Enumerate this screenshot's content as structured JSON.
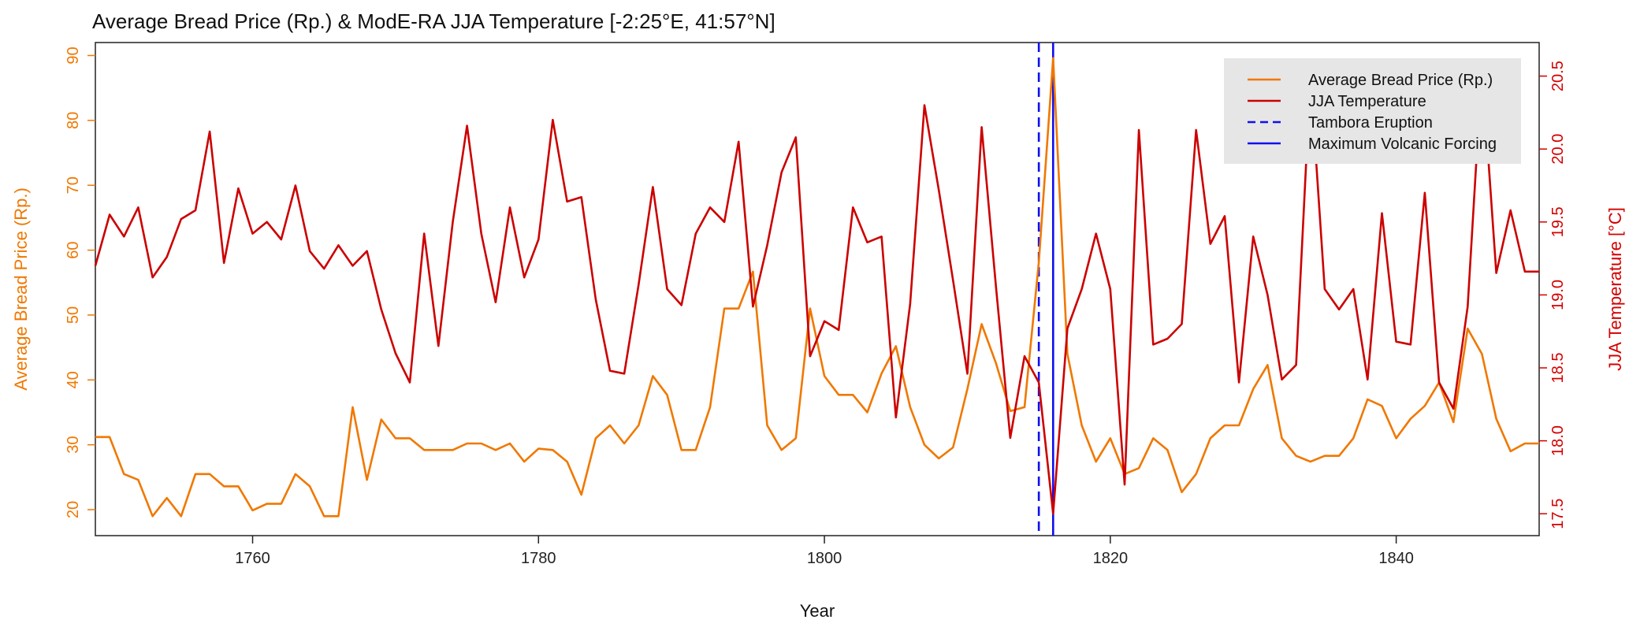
{
  "chart_data": {
    "type": "line",
    "title": "Average Bread Price (Rp.) & ModE-RA JJA Temperature  [-2:25°E, 41:57°N]",
    "xlabel": "Year",
    "ylabel_left": "Average Bread Price (Rp.)",
    "ylabel_right": "JJA Temperature [°C]",
    "xlim": [
      1749,
      1850
    ],
    "ylim_left": [
      16,
      92
    ],
    "ylim_right": [
      17.35,
      20.73
    ],
    "xticks": [
      "1760",
      "1780",
      "1800",
      "1820",
      "1840"
    ],
    "yticks_left": [
      "20",
      "30",
      "40",
      "50",
      "60",
      "70",
      "80",
      "90"
    ],
    "yticks_right": [
      "17.5",
      "18.0",
      "18.5",
      "19.0",
      "19.5",
      "20.0",
      "20.5"
    ],
    "grid": false,
    "legend_position": "top-right",
    "colors": {
      "bread": "#f07800",
      "temperature": "#cc0000",
      "tambora": "#1010ee",
      "max_forcing": "#1010ee"
    },
    "series": [
      {
        "name": "Average Bread Price (Rp.)",
        "axis": "left",
        "x": [
          1749,
          1750,
          1751,
          1752,
          1753,
          1754,
          1755,
          1756,
          1757,
          1758,
          1759,
          1760,
          1761,
          1762,
          1763,
          1764,
          1765,
          1766,
          1767,
          1768,
          1769,
          1770,
          1771,
          1772,
          1773,
          1774,
          1775,
          1776,
          1777,
          1778,
          1779,
          1780,
          1781,
          1782,
          1783,
          1784,
          1785,
          1786,
          1787,
          1788,
          1789,
          1790,
          1791,
          1792,
          1793,
          1794,
          1795,
          1796,
          1797,
          1798,
          1799,
          1800,
          1801,
          1802,
          1803,
          1804,
          1805,
          1806,
          1807,
          1808,
          1809,
          1810,
          1811,
          1812,
          1813,
          1814,
          1815,
          1816,
          1817,
          1818,
          1819,
          1820,
          1821,
          1822,
          1823,
          1824,
          1825,
          1826,
          1827,
          1828,
          1829,
          1830,
          1831,
          1832,
          1833,
          1834,
          1835,
          1836,
          1837,
          1838,
          1839,
          1840,
          1841,
          1842,
          1843,
          1844,
          1845,
          1846,
          1847,
          1848,
          1849,
          1850
        ],
        "y": [
          31.2,
          31.2,
          25.5,
          24.6,
          19,
          21.8,
          19,
          25.5,
          25.5,
          23.6,
          23.6,
          19.9,
          20.9,
          20.9,
          25.5,
          23.6,
          19,
          19,
          35.8,
          24.6,
          33.9,
          31,
          31,
          29.2,
          29.2,
          29.2,
          30.2,
          30.2,
          29.2,
          30.2,
          27.4,
          29.4,
          29.2,
          27.4,
          22.3,
          31,
          33,
          30.2,
          33,
          40.6,
          37.7,
          29.2,
          29.2,
          35.8,
          51,
          51,
          56.7,
          33,
          29.2,
          31,
          51,
          40.6,
          37.7,
          37.7,
          35,
          41,
          45.2,
          35.8,
          30,
          27.9,
          29.6,
          38.6,
          48.6,
          42.6,
          35.2,
          35.8,
          58.1,
          89.6,
          44,
          33,
          27.4,
          31,
          25.5,
          26.4,
          31,
          29.2,
          22.7,
          25.5,
          31,
          33,
          33,
          38.6,
          42.3,
          31,
          28.3,
          27.4,
          28.3,
          28.3,
          31,
          37,
          36,
          31,
          34,
          36,
          39.6,
          33.5,
          47.9,
          44,
          34,
          29,
          30.2,
          30.2
        ]
      },
      {
        "name": "JJA Temperature",
        "axis": "right",
        "x": [
          1749,
          1750,
          1751,
          1752,
          1753,
          1754,
          1755,
          1756,
          1757,
          1758,
          1759,
          1760,
          1761,
          1762,
          1763,
          1764,
          1765,
          1766,
          1767,
          1768,
          1769,
          1770,
          1771,
          1772,
          1773,
          1774,
          1775,
          1776,
          1777,
          1778,
          1779,
          1780,
          1781,
          1782,
          1783,
          1784,
          1785,
          1786,
          1787,
          1788,
          1789,
          1790,
          1791,
          1792,
          1793,
          1794,
          1795,
          1796,
          1797,
          1798,
          1799,
          1800,
          1801,
          1802,
          1803,
          1804,
          1805,
          1806,
          1807,
          1808,
          1809,
          1810,
          1811,
          1812,
          1813,
          1814,
          1815,
          1816,
          1817,
          1818,
          1819,
          1820,
          1821,
          1822,
          1823,
          1824,
          1825,
          1826,
          1827,
          1828,
          1829,
          1830,
          1831,
          1832,
          1833,
          1834,
          1835,
          1836,
          1837,
          1838,
          1839,
          1840,
          1841,
          1842,
          1843,
          1844,
          1845,
          1846,
          1847,
          1848,
          1849,
          1850
        ],
        "y": [
          19.2,
          19.55,
          19.4,
          19.6,
          19.12,
          19.26,
          19.52,
          19.58,
          20.12,
          19.22,
          19.73,
          19.42,
          19.5,
          19.38,
          19.75,
          19.3,
          19.18,
          19.34,
          19.2,
          19.3,
          18.9,
          18.6,
          18.4,
          19.42,
          18.65,
          19.5,
          20.16,
          19.42,
          18.95,
          19.6,
          19.12,
          19.38,
          20.2,
          19.64,
          19.67,
          18.97,
          18.48,
          18.46,
          19.07,
          19.74,
          19.04,
          18.93,
          19.42,
          19.6,
          19.5,
          20.05,
          18.92,
          19.34,
          19.84,
          20.08,
          18.58,
          18.82,
          18.76,
          19.6,
          19.36,
          19.4,
          18.16,
          18.94,
          20.3,
          19.72,
          19.1,
          18.46,
          20.15,
          19.06,
          18.02,
          18.58,
          18.4,
          17.5,
          18.77,
          19.04,
          19.42,
          19.04,
          17.7,
          20.13,
          18.66,
          18.7,
          18.8,
          20.13,
          19.35,
          19.54,
          18.4,
          19.4,
          19,
          18.42,
          18.52,
          20.5,
          19.04,
          18.9,
          19.04,
          18.42,
          19.56,
          18.68,
          18.66,
          19.7,
          18.4,
          18.22,
          18.92,
          20.56,
          19.15,
          19.58,
          19.16,
          19.16
        ]
      }
    ],
    "vlines": [
      {
        "name": "Tambora Eruption",
        "x": 1815,
        "style": "dashed"
      },
      {
        "name": "Maximum Volcanic Forcing",
        "x": 1816,
        "style": "solid"
      }
    ],
    "legend": [
      {
        "label": "Average Bread Price (Rp.)",
        "color": "#f07800",
        "style": "solid"
      },
      {
        "label": "JJA Temperature",
        "color": "#cc0000",
        "style": "solid"
      },
      {
        "label": "Tambora Eruption",
        "color": "#1010ee",
        "style": "dashed"
      },
      {
        "label": "Maximum Volcanic Forcing",
        "color": "#1010ee",
        "style": "solid"
      }
    ]
  }
}
